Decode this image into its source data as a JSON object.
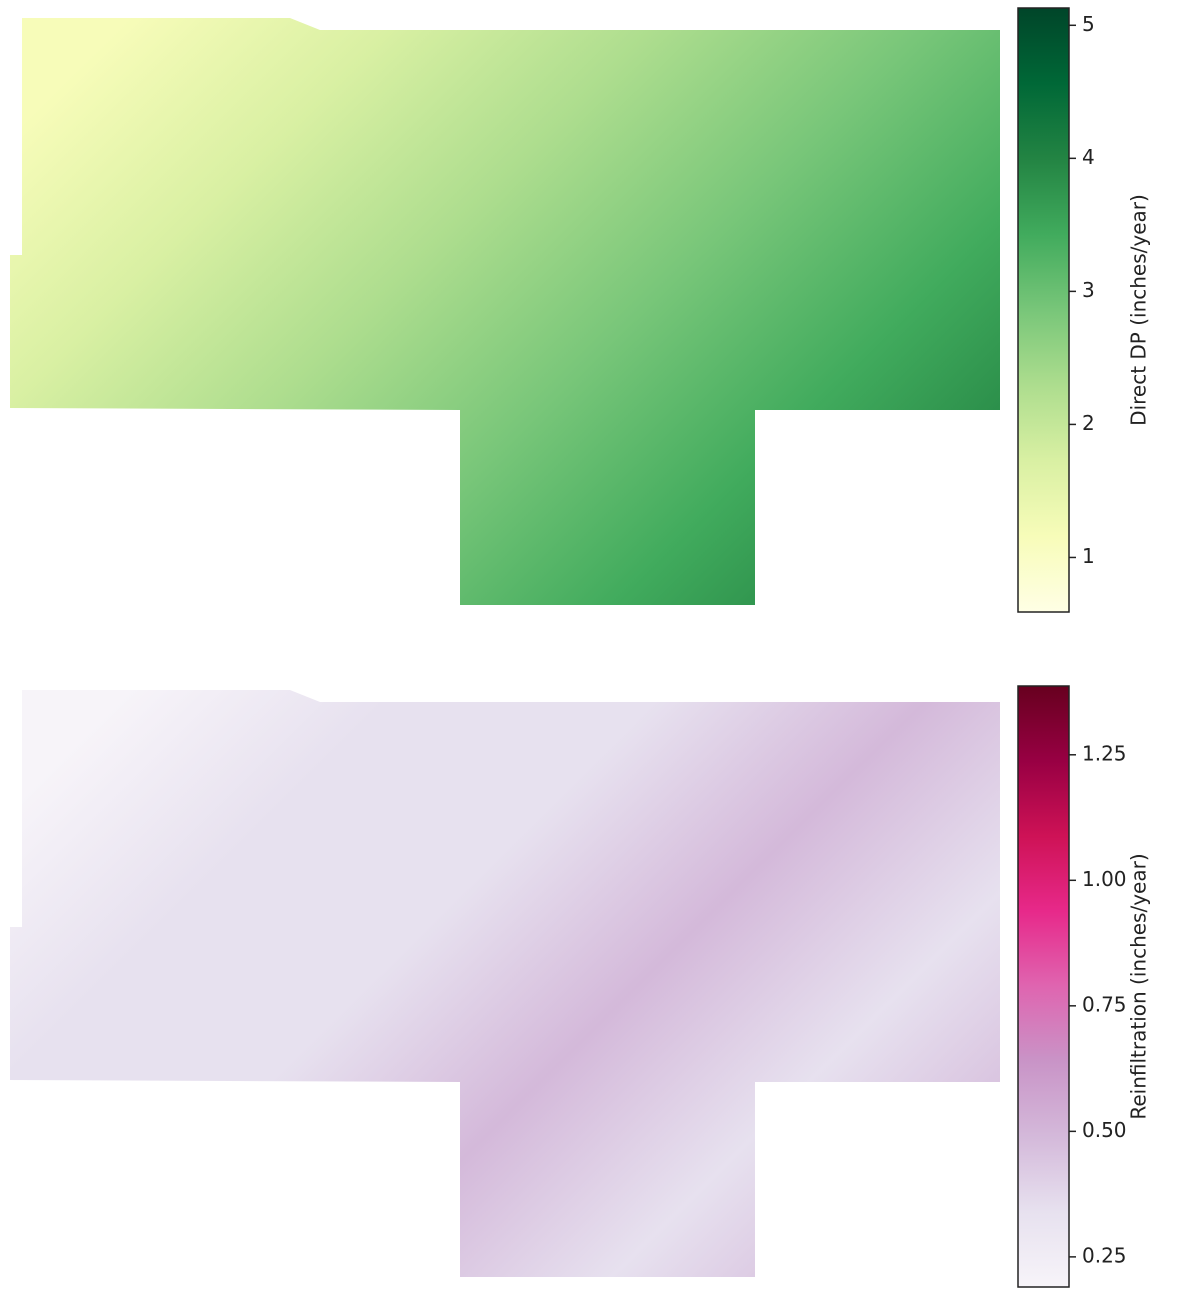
{
  "chart_data": [
    {
      "type": "colormap",
      "colorbar_label": "Direct DP (inches/year)",
      "clim": [
        0.59,
        5.13
      ],
      "cticks": [
        1,
        2,
        3,
        4,
        5
      ],
      "colors": [
        "#ffffe5",
        "#f7fcb9",
        "#d9f0a3",
        "#addd8e",
        "#78c679",
        "#41ab5d",
        "#238443",
        "#006837",
        "#004529"
      ]
    },
    {
      "type": "colormap",
      "colorbar_label": "Reinfiltration (inches/year)",
      "clim": [
        0.19,
        1.387
      ],
      "cticks": [
        {
          "value": 0.25,
          "label": "0.25"
        },
        {
          "value": 0.5,
          "label": "0.50"
        },
        {
          "value": 0.75,
          "label": "0.75"
        },
        {
          "value": 1,
          "label": "1.00"
        },
        {
          "value": 1.25,
          "label": "1.25"
        }
      ],
      "colors": [
        "#f7f4f9",
        "#e7e1ef",
        "#d4b9da",
        "#c994c7",
        "#df65b0",
        "#e7298a",
        "#ce1256",
        "#980043",
        "#67001f"
      ]
    }
  ]
}
